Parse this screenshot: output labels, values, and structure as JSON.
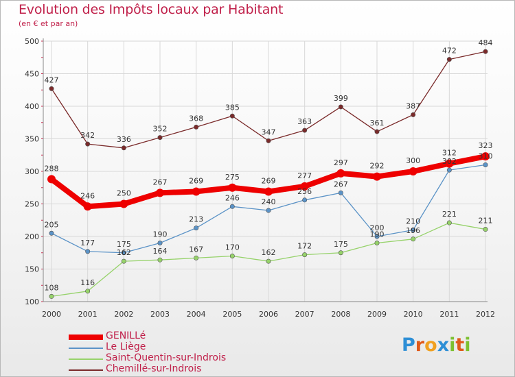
{
  "chart_data": {
    "type": "line",
    "title": "Evolution des Impôts locaux par Habitant",
    "subtitle": "(en € et par an)",
    "xlabel": "",
    "ylabel": "",
    "ylim": [
      100,
      500
    ],
    "yticks": [
      100,
      150,
      200,
      250,
      300,
      350,
      400,
      450,
      500
    ],
    "x": [
      "2000",
      "2001",
      "2002",
      "2003",
      "2004",
      "2005",
      "2006",
      "2007",
      "2008",
      "2009",
      "2010",
      "2011",
      "2012"
    ],
    "grid": true,
    "legend_position": "bottom-left",
    "series": [
      {
        "name": "Chemillé-sur-Indrois",
        "color": "#7a2a2a",
        "values": [
          427,
          342,
          336,
          352,
          368,
          385,
          347,
          363,
          399,
          361,
          387,
          472,
          484
        ],
        "labels": [
          "427",
          "342",
          "336",
          "352",
          "368",
          "385",
          "347",
          "363",
          "399",
          "361",
          "387",
          "472",
          "484"
        ]
      },
      {
        "name": "Le Liège",
        "color": "#5b93c7",
        "values": [
          205,
          177,
          175,
          190,
          213,
          246,
          240,
          256,
          267,
          200,
          210,
          302,
          310
        ],
        "labels": [
          "205",
          "177",
          "175",
          "190",
          "213",
          "246",
          "240",
          "256",
          "267",
          "200",
          "210",
          "302",
          "310"
        ]
      },
      {
        "name": "Saint-Quentin-sur-Indrois",
        "color": "#96d26a",
        "values": [
          108,
          116,
          162,
          164,
          167,
          170,
          162,
          172,
          175,
          190,
          196,
          221,
          211
        ],
        "labels": [
          "108",
          "116",
          "162",
          "164",
          "167",
          "170",
          "162",
          "172",
          "175",
          "190",
          "196",
          "221",
          "211"
        ]
      },
      {
        "name": "GENILLé",
        "color": "#ee0000",
        "values": [
          288,
          246,
          250,
          267,
          269,
          275,
          269,
          277,
          297,
          292,
          300,
          312,
          323
        ],
        "labels": [
          "288",
          "246",
          "250",
          "267",
          "269",
          "275",
          "269",
          "277",
          "297",
          "292",
          "300",
          "312",
          "323"
        ]
      }
    ]
  },
  "legend": {
    "items": [
      {
        "label": "GENILLé",
        "color": "#ee0000"
      },
      {
        "label": "Le Liège",
        "color": "#5b93c7"
      },
      {
        "label": "Saint-Quentin-sur-Indrois",
        "color": "#96d26a"
      },
      {
        "label": "Chemillé-sur-Indrois",
        "color": "#7a2a2a"
      }
    ]
  },
  "logo": {
    "letters": [
      "P",
      "r",
      "o",
      "x",
      "i",
      "t",
      "i"
    ],
    "colors": [
      "#2e8fd6",
      "#e05a1a",
      "#f0a020",
      "#2e8fd6",
      "#7cc030",
      "#e05a1a",
      "#7cc030"
    ]
  }
}
